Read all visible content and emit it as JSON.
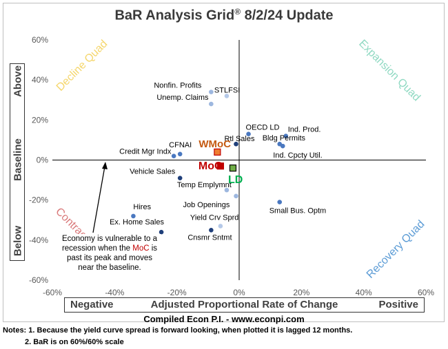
{
  "title": {
    "main": "BaR Analysis Grid",
    "reg": "®",
    "date": "8/2/24 Update"
  },
  "chart_data": {
    "type": "scatter",
    "xlim": [
      -60,
      60
    ],
    "ylim": [
      -60,
      60
    ],
    "x_ticks": [
      "-60%",
      "-40%",
      "-20%",
      "0%",
      "20%",
      "40%",
      "60%"
    ],
    "y_ticks": [
      "60%",
      "40%",
      "20%",
      "0%",
      "-20%",
      "-40%",
      "-60%"
    ],
    "quadrants": {
      "top_left": {
        "label": "Decline Quad",
        "color": "#f5d66b"
      },
      "top_right": {
        "label": "Expansion Quad",
        "color": "#8fd9c2"
      },
      "bottom_left": {
        "label": "Contraction Quad",
        "color": "#d9797a"
      },
      "bottom_right": {
        "label": "Recovery Quad",
        "color": "#5b9bd5"
      }
    },
    "points": [
      {
        "label": "Nonfin. Profits",
        "x": -9,
        "y": 34,
        "color": "#9db7df"
      },
      {
        "label": "STLFSI",
        "x": -4,
        "y": 32,
        "color": "#b5c9e8"
      },
      {
        "label": "Unemp. Claims",
        "x": -9,
        "y": 28,
        "color": "#9db7df"
      },
      {
        "label": "OECD LD",
        "x": 3,
        "y": 13,
        "color": "#4a78c0"
      },
      {
        "label": "Ind. Prod.",
        "x": 15,
        "y": 12,
        "color": "#4a78c0"
      },
      {
        "label": "Rtl Sales",
        "x": -1,
        "y": 8,
        "color": "#1f3f7a"
      },
      {
        "label": "Bldg Permits",
        "x": 13,
        "y": 8,
        "color": "#4a78c0"
      },
      {
        "label": "Ind. Cpcty Util.",
        "x": 14,
        "y": 7,
        "color": "#4a78c0"
      },
      {
        "label": "CFNAI",
        "x": -19,
        "y": 3,
        "color": "#4a78c0"
      },
      {
        "label": "Credit Mgr Indx",
        "x": -21,
        "y": 2,
        "color": "#4a78c0"
      },
      {
        "label": "Vehicle Sales",
        "x": -19,
        "y": -9,
        "color": "#1f3f7a"
      },
      {
        "label": "Temp Emplymnt",
        "x": -4,
        "y": -15,
        "color": "#9db7df"
      },
      {
        "label": "Job Openings",
        "x": -1,
        "y": -18,
        "color": "#9db7df"
      },
      {
        "label": "Small Bus. Optm",
        "x": 13,
        "y": -21,
        "color": "#4a78c0"
      },
      {
        "label": "Hires",
        "x": -34,
        "y": -28,
        "color": "#4a78c0"
      },
      {
        "label": "Yield Crv Sprd",
        "x": -6,
        "y": -33,
        "color": "#b5c9e8"
      },
      {
        "label": "Ex. Home Sales",
        "x": -25,
        "y": -36,
        "color": "#1f3f7a"
      },
      {
        "label": "Cnsmr Sntmt",
        "x": -9,
        "y": -35,
        "color": "#1f3f7a"
      }
    ],
    "summary_markers": [
      {
        "label": "WMoC",
        "x": -7,
        "y": 4,
        "fill": "#ed7d31",
        "stroke": "#c00000",
        "text_color": "#c55a11"
      },
      {
        "label": "MoC",
        "x": -6,
        "y": -3,
        "fill": "#c00000",
        "stroke": "#c00000",
        "text_color": "#c00000"
      },
      {
        "label": "LD",
        "x": -2,
        "y": -4,
        "fill": "#70ad47",
        "stroke": "#000000",
        "text_color": "#00b050"
      }
    ]
  },
  "axes": {
    "x_negative": "Negative",
    "x_title": "Adjusted Proportional Rate of Change",
    "x_positive": "Positive",
    "y_above": "Above",
    "y_baseline": "Baseline",
    "y_below": "Below"
  },
  "annotation": {
    "line1": "Economy is vulnerable to a",
    "line2_pre": "recession when the ",
    "line2_moc": "MoC",
    "line2_post": " is",
    "line3": "past its peak and moves",
    "line4": "near the baseline."
  },
  "credit": "Compiled Econ P.I. - www.econpi.com",
  "notes": {
    "note1": "Notes: 1. Because the yield curve spread is forward looking, when plotted it is lagged 12 months.",
    "note2": "2. BaR is on 60%/60% scale"
  }
}
